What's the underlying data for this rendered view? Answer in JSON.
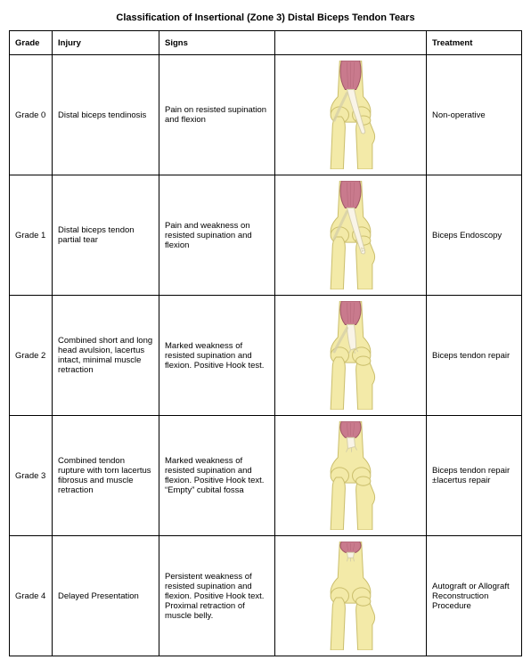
{
  "title": "Classification of Insertional (Zone 3) Distal Biceps Tendon Tears",
  "columns": [
    "Grade",
    "Injury",
    "Signs",
    "",
    "Treatment"
  ],
  "rows": [
    {
      "grade": "Grade 0",
      "injury": "Distal biceps tendinosis",
      "signs": "Pain on resisted supination and flexion",
      "treatment": "Non-operative",
      "diagram": {
        "tendon_variant": "intact",
        "muscle_len": 32
      }
    },
    {
      "grade": "Grade 1",
      "injury": "Distal biceps tendon partial tear",
      "signs": "Pain and weakness on resisted supination and flexion",
      "treatment": "Biceps Endoscopy",
      "diagram": {
        "tendon_variant": "partial",
        "muscle_len": 30
      }
    },
    {
      "grade": "Grade 2",
      "injury": "Combined short and long head avulsion, lacertus intact, minimal muscle retraction",
      "signs": "Marked weakness of resisted supination and flexion. Positive Hook test.",
      "treatment": "Biceps tendon repair",
      "diagram": {
        "tendon_variant": "avulsed_lacertus",
        "muscle_len": 26
      }
    },
    {
      "grade": "Grade 3",
      "injury": "Combined tendon rupture with torn lacertus fibrosus and muscle retraction",
      "signs": "Marked weakness of resisted supination and flexion. Positive Hook text. “Empty” cubital fossa",
      "treatment": "Biceps tendon repair ±lacertus repair",
      "diagram": {
        "tendon_variant": "rupture_retracted",
        "muscle_len": 18
      }
    },
    {
      "grade": "Grade 4",
      "injury": "Delayed Presentation",
      "signs": "Persistent weakness of resisted supination and flexion. Positive Hook text. Proximal retraction of muscle belly.",
      "treatment": "Autograft or Allograft Reconstruction Procedure",
      "diagram": {
        "tendon_variant": "retracted_proximal",
        "muscle_len": 12
      }
    }
  ],
  "palette": {
    "bone_fill": "#f3eaa8",
    "bone_stroke": "#cbbf6d",
    "tendon_fill": "#f9f4e7",
    "tendon_stroke": "#d6cfa8",
    "muscle_fill": "#c97a8d",
    "muscle_stroke": "#9e5565",
    "bg": "#ffffff"
  }
}
